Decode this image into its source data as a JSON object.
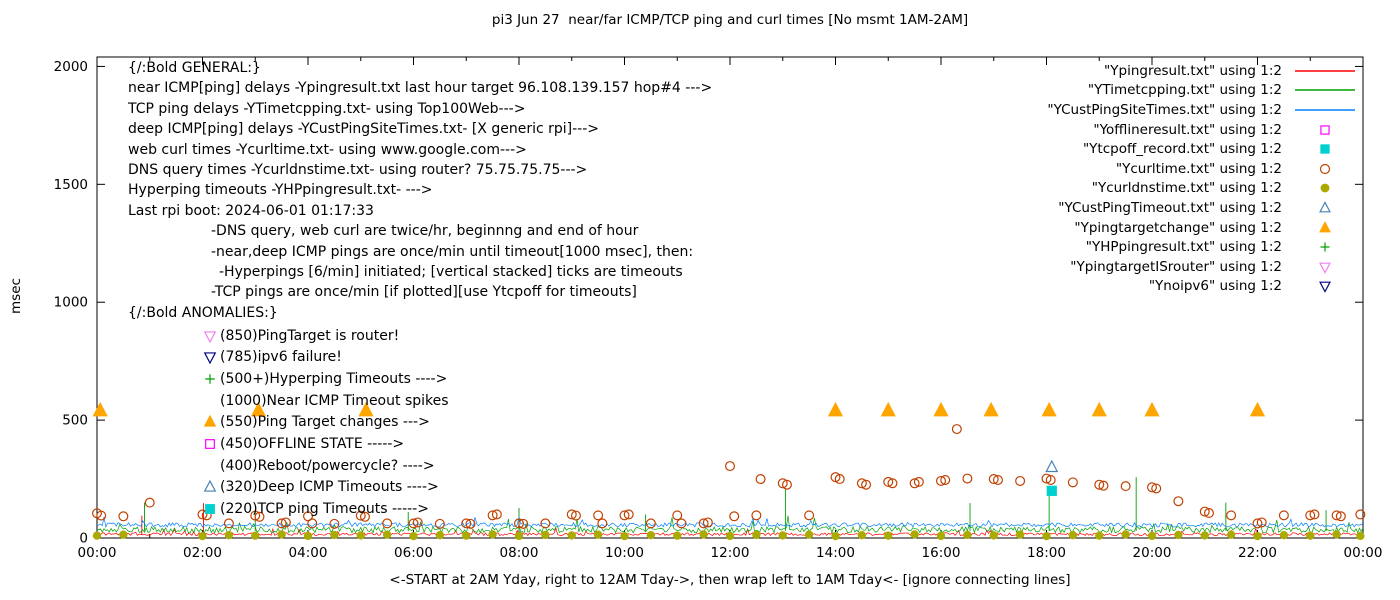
{
  "title": "pi3 Jun 27  near/far ICMP/TCP ping and curl times [No msmt 1AM-2AM]",
  "ylabel": "msec",
  "xlabel": "<-START at 2AM Yday, right to 12AM Tday->, then wrap left to 1AM Tday<- [ignore connecting lines]",
  "general": {
    "lines": [
      {
        "text": "{/:Bold GENERAL:}",
        "indent": 0
      },
      {
        "text": "near ICMP[ping] delays -Ypingresult.txt last hour target 96.108.139.157 hop#4 --->",
        "indent": 0
      },
      {
        "text": "TCP ping delays -YTimetcpping.txt- using Top100Web--->",
        "indent": 0
      },
      {
        "text": "deep ICMP[ping] delays -YCustPingSiteTimes.txt- [X generic rpi]--->",
        "indent": 0
      },
      {
        "text": "web curl times -Ycurltime.txt- using www.google.com--->",
        "indent": 0
      },
      {
        "text": "DNS query times -Ycurldnstime.txt- using router? 75.75.75.75--->",
        "indent": 0
      },
      {
        "text": "Hyperping timeouts -YHPpingresult.txt- --->",
        "indent": 0
      },
      {
        "text": "Last rpi boot: 2024-06-01 01:17:33",
        "indent": 0
      },
      {
        "text": "-DNS query, web curl are twice/hr, beginnng and end of hour",
        "indent": 83
      },
      {
        "text": "-near,deep ICMP pings are once/min until timeout[1000 msec], then:",
        "indent": 83
      },
      {
        "text": "-Hyperpings [6/min] initiated; [vertical stacked] ticks are timeouts",
        "indent": 91
      },
      {
        "text": "-TCP pings are once/min [if plotted][use Ytcpoff for timeouts]",
        "indent": 83
      }
    ]
  },
  "anomalies": {
    "header": "{/:Bold ANOMALIES:}",
    "items": [
      {
        "marker": "triangle-down-open",
        "color": "#ee82ee",
        "text": "(850)PingTarget is router!"
      },
      {
        "marker": "triangle-down-open",
        "color": "#000080",
        "text": "(785)ipv6 failure!"
      },
      {
        "marker": "plus",
        "color": "#00a000",
        "text": "(500+)Hyperping Timeouts ---->"
      },
      {
        "marker": null,
        "color": null,
        "text": "(1000)Near ICMP Timeout spikes"
      },
      {
        "marker": "triangle-filled",
        "color": "#ffa500",
        "text": "(550)Ping Target changes --->"
      },
      {
        "marker": "square-open",
        "color": "#ff00ff",
        "text": "(450)OFFLINE STATE ----->"
      },
      {
        "marker": null,
        "color": null,
        "text": "(400)Reboot/powercycle? ---->"
      },
      {
        "marker": "triangle-open",
        "color": "#4682b4",
        "text": "(320)Deep ICMP Timeouts ---->"
      },
      {
        "marker": "square-filled",
        "color": "#00d0d0",
        "text": "(220)TCP ping Timeouts ----->"
      }
    ]
  },
  "legend": {
    "entries": [
      {
        "label": "\"Ypingresult.txt\" using 1:2",
        "sample": "line",
        "color": "#ff0000"
      },
      {
        "label": "\"YTimetcpping.txt\" using 1:2",
        "sample": "line",
        "color": "#00a000"
      },
      {
        "label": "\"YCustPingSiteTimes.txt\" using 1:2",
        "sample": "line",
        "color": "#0080ff"
      },
      {
        "label": "\"Yofflineresult.txt\" using 1:2",
        "sample": "square-open",
        "color": "#ff00ff"
      },
      {
        "label": "\"Ytcpoff_record.txt\" using 1:2",
        "sample": "square-filled",
        "color": "#00d0d0"
      },
      {
        "label": "\"Ycurltime.txt\" using 1:2",
        "sample": "circle-open",
        "color": "#c04000"
      },
      {
        "label": "\"Ycurldnstime.txt\" using 1:2",
        "sample": "circle-filled",
        "color": "#aaaa00"
      },
      {
        "label": "\"YCustPingTimeout.txt\" using 1:2",
        "sample": "triangle-open",
        "color": "#4682b4"
      },
      {
        "label": "\"Ypingtargetchange\" using 1:2",
        "sample": "triangle-filled",
        "color": "#ffa500"
      },
      {
        "label": "\"YHPpingresult.txt\" using 1:2",
        "sample": "plus",
        "color": "#00a000"
      },
      {
        "label": "\"YpingtargetISrouter\" using 1:2",
        "sample": "triangle-down-open",
        "color": "#ee82ee"
      },
      {
        "label": "\"Ynoipv6\" using 1:2",
        "sample": "triangle-down-open",
        "color": "#000080"
      }
    ]
  },
  "chart_data": {
    "type": "line",
    "x_unit": "hours",
    "x_range": [
      0,
      24
    ],
    "y_range": [
      0,
      2040
    ],
    "x_tick_hours": [
      0,
      2,
      4,
      6,
      8,
      10,
      12,
      14,
      16,
      18,
      20,
      22,
      24
    ],
    "x_tick_labels": [
      "00:00",
      "02:00",
      "04:00",
      "06:00",
      "08:00",
      "10:00",
      "12:00",
      "14:00",
      "16:00",
      "18:00",
      "20:00",
      "22:00",
      "00:00"
    ],
    "x_minor_every_hours": 1,
    "y_ticks": [
      0,
      500,
      1000,
      1500,
      2000
    ],
    "grid": false,
    "legend_position": "top-right",
    "noise_series": [
      {
        "name": "Ypingresult.txt",
        "color": "#ff0000",
        "base": 14,
        "amp": 12,
        "seed": 11,
        "spikes": [
          [
            0.85,
            95
          ],
          [
            2.02,
            148
          ]
        ]
      },
      {
        "name": "YTimetcpping.txt",
        "color": "#00a000",
        "base": 30,
        "amp": 26,
        "seed": 22,
        "spikes": [
          [
            0.9,
            150
          ],
          [
            3.0,
            118
          ],
          [
            5.9,
            110
          ],
          [
            8.0,
            128
          ],
          [
            10.4,
            100
          ],
          [
            13.05,
            212
          ],
          [
            16.55,
            148
          ],
          [
            18.05,
            205
          ],
          [
            19.7,
            258
          ],
          [
            21.4,
            150
          ],
          [
            23.3,
            118
          ]
        ]
      },
      {
        "name": "YCustPingSiteTimes.txt",
        "color": "#0080ff",
        "base": 52,
        "amp": 18,
        "seed": 33,
        "spikes": []
      }
    ],
    "scatter_series": [
      {
        "name": "Ycurldnstime.txt",
        "marker": "circle-filled",
        "color": "#aaaa00",
        "size": 4.2,
        "points": [
          [
            0,
            10
          ],
          [
            0.5,
            14
          ],
          [
            2,
            8
          ],
          [
            2.5,
            12
          ],
          [
            3,
            10
          ],
          [
            3.5,
            15
          ],
          [
            4,
            9
          ],
          [
            4.5,
            13
          ],
          [
            5,
            11
          ],
          [
            5.5,
            14
          ],
          [
            6,
            8
          ],
          [
            6.5,
            12
          ],
          [
            7,
            10
          ],
          [
            7.5,
            15
          ],
          [
            8,
            9
          ],
          [
            8.5,
            13
          ],
          [
            9,
            11
          ],
          [
            9.5,
            14
          ],
          [
            10,
            8
          ],
          [
            10.5,
            12
          ],
          [
            11,
            10
          ],
          [
            11.5,
            15
          ],
          [
            12,
            9
          ],
          [
            12.5,
            13
          ],
          [
            13,
            11
          ],
          [
            13.5,
            14
          ],
          [
            14,
            8
          ],
          [
            14.5,
            12
          ],
          [
            15,
            10
          ],
          [
            15.5,
            15
          ],
          [
            16,
            9
          ],
          [
            16.5,
            13
          ],
          [
            17,
            11
          ],
          [
            17.5,
            14
          ],
          [
            18,
            8
          ],
          [
            18.5,
            12
          ],
          [
            19,
            10
          ],
          [
            19.5,
            15
          ],
          [
            20,
            9
          ],
          [
            20.5,
            13
          ],
          [
            21,
            11
          ],
          [
            21.5,
            14
          ],
          [
            22,
            8
          ],
          [
            22.5,
            12
          ],
          [
            23,
            10
          ],
          [
            23.5,
            15
          ],
          [
            23.95,
            9
          ]
        ]
      },
      {
        "name": "Ycurltime.txt",
        "marker": "circle-open",
        "color": "#c04000",
        "size": 4.4,
        "points": [
          [
            0,
            105
          ],
          [
            0.08,
            95
          ],
          [
            0.5,
            92
          ],
          [
            1,
            150
          ],
          [
            2,
            100
          ],
          [
            2.08,
            96
          ],
          [
            2.5,
            62
          ],
          [
            3,
            95
          ],
          [
            3.08,
            90
          ],
          [
            3.5,
            62
          ],
          [
            3.58,
            66
          ],
          [
            4,
            92
          ],
          [
            4.08,
            62
          ],
          [
            4.5,
            60
          ],
          [
            5,
            95
          ],
          [
            5.08,
            90
          ],
          [
            5.5,
            62
          ],
          [
            6,
            62
          ],
          [
            6.08,
            66
          ],
          [
            6.5,
            60
          ],
          [
            7,
            62
          ],
          [
            7.08,
            60
          ],
          [
            7.5,
            96
          ],
          [
            7.58,
            100
          ],
          [
            8,
            62
          ],
          [
            8.08,
            60
          ],
          [
            8.5,
            62
          ],
          [
            9,
            100
          ],
          [
            9.08,
            95
          ],
          [
            9.5,
            96
          ],
          [
            9.58,
            62
          ],
          [
            10,
            96
          ],
          [
            10.08,
            100
          ],
          [
            10.5,
            62
          ],
          [
            11,
            96
          ],
          [
            11.08,
            62
          ],
          [
            11.5,
            62
          ],
          [
            11.58,
            66
          ],
          [
            12,
            305
          ],
          [
            12.08,
            92
          ],
          [
            12.5,
            96
          ],
          [
            12.58,
            250
          ],
          [
            13,
            232
          ],
          [
            13.08,
            226
          ],
          [
            13.5,
            96
          ],
          [
            14,
            258
          ],
          [
            14.08,
            250
          ],
          [
            14.5,
            232
          ],
          [
            14.58,
            226
          ],
          [
            15,
            238
          ],
          [
            15.08,
            232
          ],
          [
            15.5,
            232
          ],
          [
            15.58,
            238
          ],
          [
            16,
            242
          ],
          [
            16.08,
            246
          ],
          [
            16.3,
            462
          ],
          [
            16.5,
            252
          ],
          [
            17,
            250
          ],
          [
            17.08,
            246
          ],
          [
            17.5,
            242
          ],
          [
            18,
            252
          ],
          [
            18.08,
            246
          ],
          [
            18.5,
            236
          ],
          [
            19,
            226
          ],
          [
            19.08,
            222
          ],
          [
            19.5,
            220
          ],
          [
            20,
            215
          ],
          [
            20.08,
            210
          ],
          [
            20.5,
            156
          ],
          [
            21,
            112
          ],
          [
            21.08,
            106
          ],
          [
            21.5,
            96
          ],
          [
            22,
            62
          ],
          [
            22.08,
            66
          ],
          [
            22.5,
            96
          ],
          [
            23,
            96
          ],
          [
            23.08,
            100
          ],
          [
            23.5,
            96
          ],
          [
            23.58,
            92
          ],
          [
            23.95,
            100
          ]
        ]
      },
      {
        "name": "YCustPingTimeout.txt",
        "marker": "triangle-open",
        "color": "#4682b4",
        "size": 5,
        "points": [
          [
            18.1,
            300
          ]
        ]
      },
      {
        "name": "Ytcpoff_record.txt",
        "marker": "square-filled",
        "color": "#00d0d0",
        "size": 5,
        "points": [
          [
            18.1,
            200
          ]
        ]
      },
      {
        "name": "Ypingtargetchange",
        "marker": "triangle-filled",
        "color": "#ffa500",
        "size": 6,
        "points": [
          [
            0.06,
            540
          ],
          [
            3.06,
            540
          ],
          [
            5.1,
            540
          ],
          [
            14,
            540
          ],
          [
            15,
            540
          ],
          [
            16,
            540
          ],
          [
            16.95,
            540
          ],
          [
            18.05,
            540
          ],
          [
            19,
            540
          ],
          [
            20,
            540
          ],
          [
            22,
            540
          ]
        ]
      }
    ]
  }
}
